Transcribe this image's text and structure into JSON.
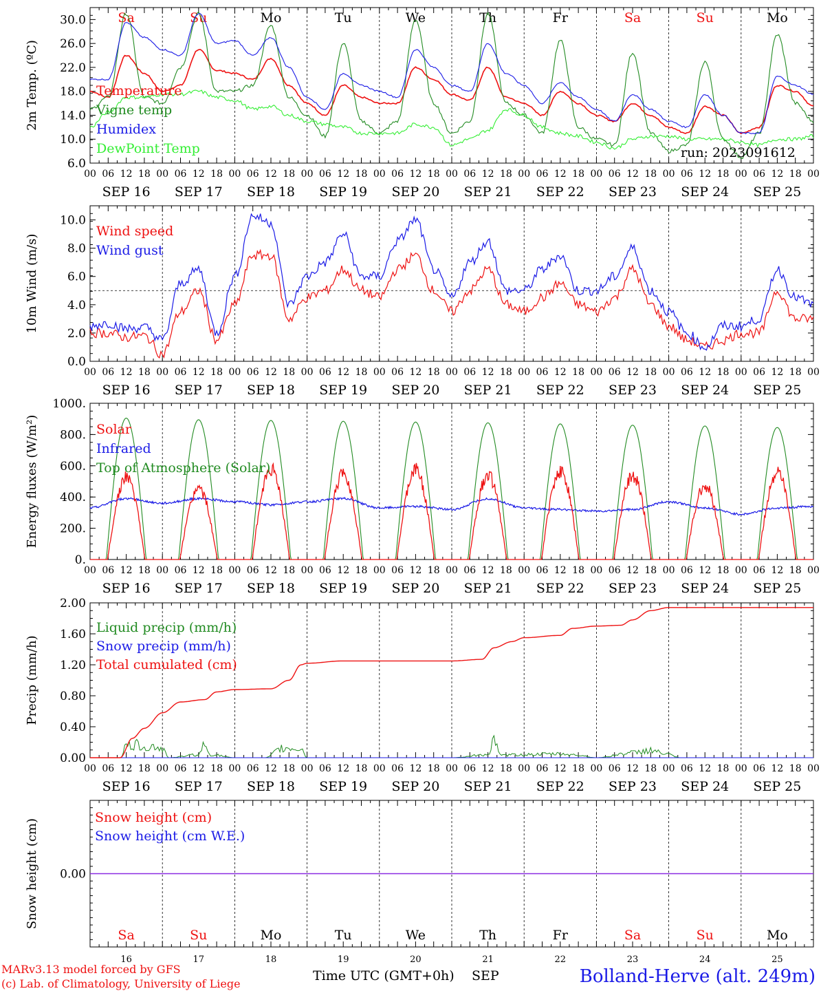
{
  "colors": {
    "red": "#ee1111",
    "green": "#228b22",
    "lightgreen": "#33ee33",
    "blue": "#1a1ae6",
    "purple": "#8a2be2",
    "weekend": "#ee1111",
    "weekday": "#000000"
  },
  "day_names": [
    {
      "label": "Sa",
      "weekend": true
    },
    {
      "label": "Su",
      "weekend": true
    },
    {
      "label": "Mo",
      "weekend": false
    },
    {
      "label": "Tu",
      "weekend": false
    },
    {
      "label": "We",
      "weekend": false
    },
    {
      "label": "Th",
      "weekend": false
    },
    {
      "label": "Fr",
      "weekend": false
    },
    {
      "label": "Sa",
      "weekend": true
    },
    {
      "label": "Su",
      "weekend": true
    },
    {
      "label": "Mo",
      "weekend": false
    }
  ],
  "date_labels": [
    "SEP 16",
    "SEP 17",
    "SEP 18",
    "SEP 19",
    "SEP 20",
    "SEP 21",
    "SEP 22",
    "SEP 23",
    "SEP 24",
    "SEP 25"
  ],
  "hour_labels": [
    "00",
    "06",
    "12",
    "18"
  ],
  "final_hour_label": "00",
  "bottom_day_numbers": [
    "16",
    "17",
    "18",
    "19",
    "20",
    "21",
    "22",
    "23",
    "24",
    "25"
  ],
  "footer": {
    "model": "MARv3.13 model forced by GFS",
    "credit": "(c) Lab. of Climatology, University of Liege",
    "time_axis": "Time UTC (GMT+0h)",
    "month": "SEP",
    "station": "Bolland-Herve (alt. 249m)"
  },
  "chart_data": [
    {
      "id": "temperature",
      "type": "line",
      "ylabel": "2m Temp. (ºC)",
      "ylim": [
        6.0,
        32.0
      ],
      "yticks": [
        "6.0",
        "10.0",
        "14.0",
        "18.0",
        "22.0",
        "26.0",
        "30.0"
      ],
      "run_label": "run: 2023091612",
      "series": [
        {
          "name": "Temperature",
          "color": "red",
          "x": [
            0,
            6,
            12,
            18,
            24,
            30,
            36,
            42,
            48,
            54,
            60,
            66,
            72,
            78,
            84,
            90,
            96,
            102,
            108,
            114,
            120,
            126,
            132,
            138,
            144,
            150,
            156,
            162,
            168,
            174,
            180,
            186,
            192,
            198,
            204,
            210,
            216,
            222,
            228,
            234,
            240
          ],
          "y": [
            18,
            17,
            24,
            21,
            18,
            19,
            25,
            21.5,
            21,
            20,
            23.5,
            19,
            16,
            14,
            19,
            17,
            16,
            16,
            22,
            20,
            17.5,
            16.5,
            22,
            17,
            16,
            14,
            18,
            16,
            14,
            13,
            16,
            14,
            12,
            11,
            15.5,
            14,
            11,
            12,
            19,
            18,
            15.5
          ]
        },
        {
          "name": "Vigne temp",
          "color": "green",
          "x": [
            0,
            6,
            12,
            18,
            24,
            30,
            36,
            42,
            48,
            54,
            60,
            66,
            72,
            78,
            84,
            90,
            96,
            102,
            108,
            114,
            120,
            126,
            132,
            138,
            144,
            150,
            156,
            162,
            168,
            174,
            180,
            186,
            192,
            198,
            204,
            210,
            216,
            222,
            228,
            234,
            240
          ],
          "y": [
            15,
            17,
            31,
            17,
            16,
            22,
            31,
            18,
            18,
            19,
            29,
            17,
            14,
            10.5,
            26,
            13,
            11,
            13,
            30,
            16,
            11,
            13,
            31,
            16,
            14,
            11,
            26.5,
            12,
            10,
            9,
            24.5,
            11,
            8,
            9,
            23,
            10,
            7,
            11,
            27.5,
            16,
            13
          ]
        },
        {
          "name": "Humidex",
          "color": "blue",
          "x": [
            0,
            6,
            12,
            18,
            24,
            30,
            36,
            42,
            48,
            54,
            60,
            66,
            72,
            78,
            84,
            90,
            96,
            102,
            108,
            114,
            120,
            126,
            132,
            138,
            144,
            150,
            156,
            162,
            168,
            174,
            180,
            186,
            192,
            198,
            204,
            210,
            216,
            222,
            228,
            234,
            240
          ],
          "y": [
            20,
            20,
            29.5,
            27,
            25,
            24,
            31,
            26,
            26.5,
            24,
            27,
            22,
            17,
            15,
            21,
            19,
            18,
            17,
            25,
            22,
            19,
            18,
            26,
            21,
            19,
            16,
            19.5,
            17,
            15,
            13,
            17.5,
            15,
            13,
            12,
            17.5,
            14,
            11,
            11,
            20.5,
            19,
            17.5
          ]
        },
        {
          "name": "DewPoint Temp",
          "color": "lightgreen",
          "x": [
            0,
            6,
            12,
            18,
            24,
            30,
            36,
            42,
            48,
            54,
            60,
            66,
            72,
            78,
            84,
            90,
            96,
            102,
            108,
            114,
            120,
            126,
            132,
            138,
            144,
            150,
            156,
            162,
            168,
            174,
            180,
            186,
            192,
            198,
            204,
            210,
            216,
            222,
            228,
            234,
            240
          ],
          "y": [
            12,
            14.5,
            17,
            17,
            17.5,
            17.5,
            18,
            17,
            16.5,
            15,
            15.5,
            14,
            13,
            12.5,
            12,
            11,
            11,
            11,
            12.5,
            12,
            9,
            10,
            11.5,
            15,
            14,
            12,
            11,
            10.5,
            9.5,
            8.5,
            10,
            10.5,
            10.5,
            10,
            10,
            10,
            9.5,
            9,
            10,
            10,
            10.5
          ]
        }
      ]
    },
    {
      "id": "wind",
      "type": "line",
      "ylabel": "10m Wind (m/s)",
      "ylim": [
        0.0,
        11.0
      ],
      "yticks": [
        "0.0",
        "2.0",
        "4.0",
        "6.0",
        "8.0",
        "10.0"
      ],
      "reference_line": 5.0,
      "series": [
        {
          "name": "Wind speed",
          "color": "red",
          "x": [
            0,
            6,
            12,
            18,
            24,
            30,
            36,
            42,
            48,
            54,
            60,
            66,
            72,
            78,
            84,
            90,
            96,
            102,
            108,
            114,
            120,
            126,
            132,
            138,
            144,
            150,
            156,
            162,
            168,
            174,
            180,
            186,
            192,
            198,
            204,
            210,
            216,
            222,
            228,
            234,
            240
          ],
          "y": [
            2,
            2,
            1.7,
            1.8,
            0.5,
            3.5,
            5,
            1.5,
            4,
            7.5,
            7.5,
            3,
            4.5,
            5,
            6.5,
            5,
            4.5,
            6.5,
            7.5,
            5,
            3.5,
            5,
            6.5,
            4,
            3.5,
            4.5,
            5.5,
            4,
            3.5,
            4.5,
            6.5,
            4,
            2.5,
            1.5,
            1,
            1.5,
            2,
            2,
            5,
            3,
            3
          ]
        },
        {
          "name": "Wind gust",
          "color": "blue",
          "x": [
            0,
            6,
            12,
            18,
            24,
            30,
            36,
            42,
            48,
            54,
            60,
            66,
            72,
            78,
            84,
            90,
            96,
            102,
            108,
            114,
            120,
            126,
            132,
            138,
            144,
            150,
            156,
            162,
            168,
            174,
            180,
            186,
            192,
            198,
            204,
            210,
            216,
            222,
            228,
            234,
            240
          ],
          "y": [
            2.5,
            2.7,
            2.3,
            2.4,
            1.5,
            5.5,
            6.5,
            2,
            6,
            10.3,
            9.8,
            4,
            6,
            7,
            9,
            6,
            6,
            8.5,
            10,
            6.5,
            4.5,
            7,
            8.5,
            5,
            5,
            6.5,
            7.5,
            5,
            5,
            6,
            8,
            5,
            3.5,
            2,
            1,
            2.5,
            2.5,
            3,
            6.5,
            4.5,
            4
          ]
        }
      ]
    },
    {
      "id": "energy",
      "type": "line",
      "ylabel": "Energy fluxes (W/m²)",
      "ylim": [
        0,
        1000
      ],
      "yticks": [
        "0.",
        "200.",
        "400.",
        "600.",
        "800.",
        "1000."
      ],
      "series": [
        {
          "name": "Solar",
          "color": "red",
          "daily_peaks": [
            570,
            490,
            630,
            590,
            620,
            580,
            610,
            575,
            510,
            600
          ]
        },
        {
          "name": "Infrared",
          "color": "blue",
          "x": [
            0,
            12,
            24,
            36,
            48,
            60,
            72,
            84,
            96,
            108,
            120,
            132,
            144,
            156,
            168,
            180,
            192,
            204,
            216,
            228,
            240
          ],
          "y": [
            330,
            390,
            360,
            390,
            370,
            350,
            370,
            390,
            330,
            340,
            320,
            390,
            330,
            320,
            310,
            320,
            370,
            330,
            290,
            330,
            340
          ]
        },
        {
          "name": "Top of Atmosphere (Solar)",
          "color": "green",
          "daily_peaks": [
            905,
            895,
            890,
            885,
            880,
            875,
            868,
            860,
            855,
            845
          ]
        }
      ]
    },
    {
      "id": "precip",
      "type": "line",
      "ylabel": "Precip (mm/h)",
      "ylim": [
        0.0,
        2.0
      ],
      "yticks": [
        "0.00",
        "0.40",
        "0.80",
        "1.20",
        "1.60",
        "2.00"
      ],
      "series": [
        {
          "name": "Liquid precip (mm/h)",
          "color": "green",
          "x": [
            0,
            10,
            12,
            16,
            20,
            24,
            26,
            36,
            38,
            40,
            48,
            58,
            64,
            70,
            72,
            120,
            132,
            134,
            136,
            144,
            156,
            162,
            168,
            180,
            186,
            190,
            196,
            240
          ],
          "y": [
            0,
            0,
            0.18,
            0.2,
            0.18,
            0.15,
            0,
            0.05,
            0.2,
            0.05,
            0,
            0,
            0.15,
            0.15,
            0,
            0,
            0.05,
            0.28,
            0.04,
            0.05,
            0.06,
            0.04,
            0,
            0.08,
            0.12,
            0.07,
            0,
            0
          ]
        },
        {
          "name": "Snow precip (mm/h)",
          "color": "blue",
          "x": [
            0,
            240
          ],
          "y": [
            0,
            0
          ]
        },
        {
          "name": "Total cumulated (cm)",
          "color": "red",
          "x": [
            0,
            10,
            14,
            18,
            24,
            30,
            38,
            42,
            48,
            60,
            66,
            70,
            72,
            84,
            120,
            130,
            134,
            140,
            144,
            156,
            160,
            168,
            176,
            180,
            186,
            192,
            240
          ],
          "y": [
            0,
            0,
            0.25,
            0.38,
            0.58,
            0.72,
            0.75,
            0.85,
            0.88,
            0.89,
            1.0,
            1.2,
            1.22,
            1.25,
            1.25,
            1.27,
            1.42,
            1.5,
            1.55,
            1.58,
            1.67,
            1.7,
            1.71,
            1.78,
            1.9,
            1.94,
            1.94
          ]
        }
      ]
    },
    {
      "id": "snow",
      "type": "line",
      "ylabel": "Snow height (cm)",
      "ylim": [
        -1.0,
        1.0
      ],
      "yticks": [
        "0.00"
      ],
      "series": [
        {
          "name": "Snow height (cm)",
          "color": "red",
          "x": [
            0,
            240
          ],
          "y": [
            0,
            0
          ]
        },
        {
          "name": "Snow height (cm W.E.)",
          "color": "blue",
          "x": [
            0,
            240
          ],
          "y": [
            0,
            0
          ]
        }
      ]
    }
  ]
}
